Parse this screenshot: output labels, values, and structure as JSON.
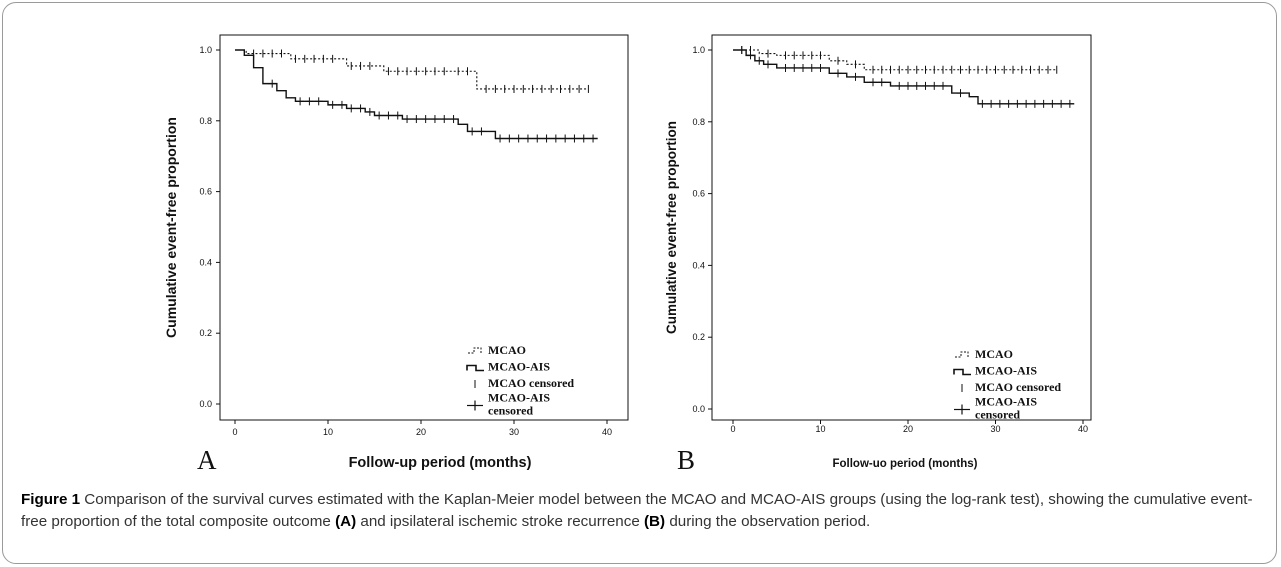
{
  "caption": {
    "label": "Figure 1",
    "text_1": " Comparison of the survival curves estimated with the Kaplan-Meier model between the MCAO and MCAO-AIS groups (using the log-rank test), showing the cumulative event-free proportion of the total composite outcome ",
    "ref_a": "(A)",
    "text_2": " and ipsilateral ischemic stroke recurrence ",
    "ref_b": "(B)",
    "text_3": " during the observation period."
  },
  "colors": {
    "line": "#111111",
    "frame": "#9a9a9a",
    "caption": "#333333"
  },
  "chart_data": [
    {
      "type": "line",
      "panel_label": "A",
      "title": "",
      "xlabel": "Follow-up period (months)",
      "ylabel": "Cumulative event-free proportion",
      "xlim": [
        0,
        40
      ],
      "ylim": [
        0.0,
        1.0
      ],
      "x_ticks": [
        "0",
        "10",
        "20",
        "30",
        "40"
      ],
      "y_ticks": [
        "0.0",
        "0.2",
        "0.4",
        "0.6",
        "0.8",
        "1.0"
      ],
      "grid": false,
      "legend_position": "bottom-right",
      "legend": [
        "MCAO",
        "MCAO-AIS",
        "MCAO censored",
        "MCAO-AIS censored"
      ],
      "series": [
        {
          "name": "MCAO",
          "style": "dotted",
          "steps": [
            [
              0,
              1.0
            ],
            [
              1.2,
              0.99
            ],
            [
              6,
              0.975
            ],
            [
              12,
              0.955
            ],
            [
              16,
              0.94
            ],
            [
              26,
              0.89
            ],
            [
              38,
              0.89
            ]
          ],
          "censored": [
            2,
            3,
            4,
            5,
            6.5,
            7.5,
            8.5,
            9.5,
            10.5,
            12.5,
            13.5,
            14.5,
            16.5,
            17.5,
            18.5,
            19.5,
            20.5,
            21.5,
            22.5,
            24,
            25,
            27,
            28,
            29,
            30,
            31,
            32,
            33,
            34,
            35,
            36,
            37,
            38
          ]
        },
        {
          "name": "MCAO-AIS",
          "style": "solid",
          "steps": [
            [
              0,
              1.0
            ],
            [
              1.0,
              0.985
            ],
            [
              2.0,
              0.95
            ],
            [
              3.0,
              0.905
            ],
            [
              4.5,
              0.885
            ],
            [
              5.5,
              0.865
            ],
            [
              6.5,
              0.855
            ],
            [
              10,
              0.845
            ],
            [
              12,
              0.835
            ],
            [
              14,
              0.825
            ],
            [
              15,
              0.815
            ],
            [
              18,
              0.805
            ],
            [
              24,
              0.79
            ],
            [
              25,
              0.77
            ],
            [
              28,
              0.75
            ],
            [
              39,
              0.75
            ]
          ],
          "censored": [
            4,
            7,
            8,
            9,
            10.5,
            11.5,
            12.5,
            13.5,
            14.5,
            15.5,
            16.5,
            17.5,
            18.5,
            19.5,
            20.5,
            21.5,
            22.5,
            23.5,
            25.5,
            26.5,
            28.5,
            29.5,
            30.5,
            31.5,
            32.5,
            33.5,
            34.5,
            35.5,
            36.5,
            37.5,
            38.5
          ]
        }
      ]
    },
    {
      "type": "line",
      "panel_label": "B",
      "title": "",
      "xlabel": "Follow-uo period (months)",
      "ylabel": "Cumulative event-free proportion",
      "xlim": [
        0,
        40
      ],
      "ylim": [
        0.0,
        1.0
      ],
      "x_ticks": [
        "0",
        "10",
        "20",
        "30",
        "40"
      ],
      "y_ticks": [
        "0.0",
        "0.2",
        "0.4",
        "0.6",
        "0.8",
        "1.0"
      ],
      "grid": false,
      "legend_position": "bottom-right",
      "legend": [
        "MCAO",
        "MCAO-AIS",
        "MCAO censored",
        "MCAO-AIS censored"
      ],
      "series": [
        {
          "name": "MCAO",
          "style": "dotted",
          "steps": [
            [
              0,
              1.0
            ],
            [
              3,
              0.99
            ],
            [
              5,
              0.985
            ],
            [
              11,
              0.97
            ],
            [
              13,
              0.96
            ],
            [
              15,
              0.945
            ],
            [
              37,
              0.945
            ]
          ],
          "censored": [
            1,
            2,
            4,
            6,
            7,
            8,
            9,
            10,
            12,
            14,
            16,
            17,
            18,
            19,
            20,
            21,
            22,
            23,
            24,
            25,
            26,
            27,
            28,
            29,
            30,
            31,
            32,
            33,
            34,
            35,
            36,
            37
          ]
        },
        {
          "name": "MCAO-AIS",
          "style": "solid",
          "steps": [
            [
              0,
              1.0
            ],
            [
              1.5,
              0.985
            ],
            [
              2.5,
              0.97
            ],
            [
              3.5,
              0.96
            ],
            [
              5,
              0.95
            ],
            [
              11,
              0.935
            ],
            [
              13,
              0.925
            ],
            [
              15,
              0.91
            ],
            [
              18,
              0.9
            ],
            [
              25,
              0.88
            ],
            [
              27,
              0.87
            ],
            [
              28,
              0.85
            ],
            [
              39,
              0.85
            ]
          ],
          "censored": [
            1,
            2,
            3,
            4,
            6,
            7,
            8,
            9,
            10,
            12,
            14,
            16,
            17,
            19,
            20,
            21,
            22,
            23,
            24,
            26,
            28.5,
            29.5,
            30.5,
            31.5,
            32.5,
            33.5,
            34.5,
            35.5,
            36.5,
            37.5,
            38.5
          ]
        }
      ]
    }
  ]
}
